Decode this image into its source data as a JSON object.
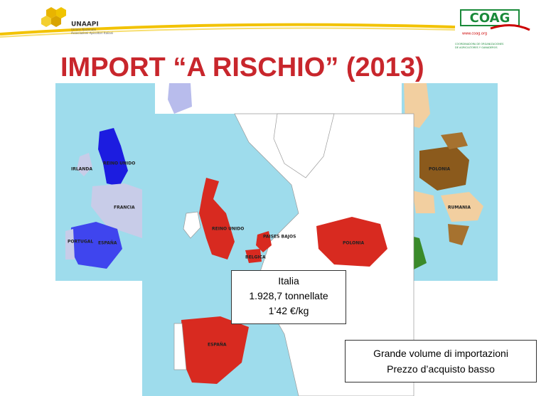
{
  "header": {
    "left_logo": {
      "name": "UNAAPI",
      "subtitle_1": "Unione Nazionale",
      "subtitle_2": "Associazioni Apicoltori Italiani"
    },
    "right_logo": {
      "name": "COAG",
      "url": "www.coag.org",
      "subtitle_1": "COORDINADORA DE ORGANIZACIONES",
      "subtitle_2": "DE AGRICULTORES Y GANADEROS"
    }
  },
  "title": "IMPORT “A RISCHIO”  (2013)",
  "maps": {
    "left": {
      "labels": [
        "IRLANDA",
        "REINO UNIDO",
        "FRANCIA",
        "PORTUGAL",
        "ESPAÑA"
      ]
    },
    "center": {
      "labels": [
        "REINO UNIDO",
        "PAISES BAJOS",
        "BELGICA",
        "POLONIA",
        "ESPAÑA"
      ]
    },
    "right": {
      "labels": [
        "POLONIA",
        "RUMANIA"
      ]
    }
  },
  "info_box": {
    "country": "Italia",
    "volume": "1.928,7 tonnellate",
    "price": "1’42 €/kg"
  },
  "note_box": {
    "line_1": "Grande volume di importazioni",
    "line_2": "Prezzo d’acquisto basso"
  }
}
